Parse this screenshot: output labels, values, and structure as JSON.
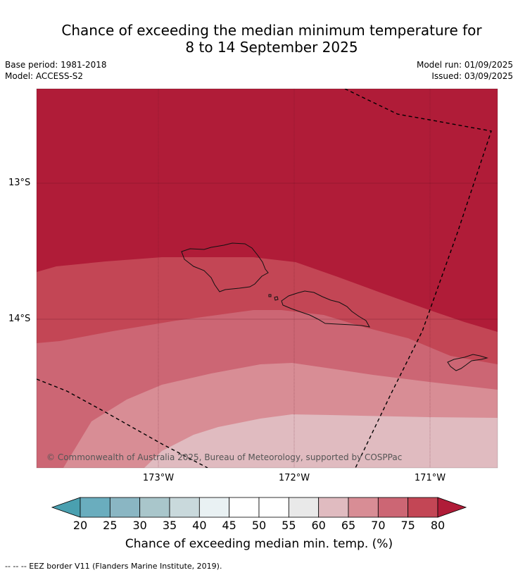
{
  "header": {
    "title_line1": "Chance of exceeding the median minimum temperature for",
    "title_line2": "8 to 14 September 2025",
    "base_period": "Base period: 1981-2018",
    "model": "Model: ACCESS-S2",
    "model_run": "Model run: 01/09/2025",
    "issued": "Issued: 03/09/2025"
  },
  "map": {
    "lat_labels": [
      "13°S",
      "14°S"
    ],
    "lon_labels": [
      "173°W",
      "172°W",
      "171°W"
    ],
    "copyright": "© Commonwealth of Australia 2025, Bureau of Meteorology, supported by COSPPac",
    "colors": {
      "band_80_plus": "#b01c38",
      "band_75_80": "#c34655",
      "band_70_75": "#cc6674",
      "band_65_70": "#d88d95",
      "band_60_65": "#e0bbc0"
    }
  },
  "colorbar": {
    "ticks": [
      "20",
      "25",
      "30",
      "35",
      "40",
      "45",
      "50",
      "55",
      "60",
      "65",
      "70",
      "75",
      "80"
    ],
    "colors": [
      "#4aa0b0",
      "#6aadbe",
      "#8ab6c3",
      "#a9c6cb",
      "#c9d9dc",
      "#e9f1f3",
      "#ffffff",
      "#ffffff",
      "#e9e9e9",
      "#e0bbc0",
      "#d88d95",
      "#cc6674",
      "#c34655",
      "#b01c38"
    ],
    "title": "Chance of exceeding median min. temp. (%)"
  },
  "footnote": "-- -- -- EEZ border V11 (Flanders Marine Institute, 2019)."
}
